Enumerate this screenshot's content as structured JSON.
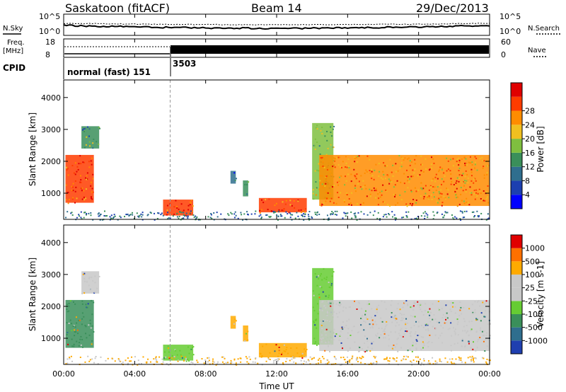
{
  "header": {
    "station": "Saskatoon (fitACF)",
    "beam": "Beam 14",
    "date": "29/Dec/2013"
  },
  "top_panels": {
    "nsky_label": "N.Sky",
    "nsearch_label": "N.Search",
    "freq_label": "Freq.",
    "freq_unit": "[MHz]",
    "nave_label": "Nave",
    "cpid_label": "CPID",
    "noise_ticks_left": [
      "10^5",
      "10^0"
    ],
    "noise_ticks_right": [
      "10^5",
      "10^0"
    ],
    "freq_ticks": [
      "18",
      "8"
    ],
    "nave_ticks": [
      "60",
      "0"
    ],
    "cpid_segments": [
      {
        "label": "normal (fast) 151",
        "start_hour": 0
      },
      {
        "label": "3503",
        "start_hour": 6.0
      }
    ]
  },
  "chart_data": [
    {
      "type": "heatmap",
      "panel": "power",
      "ylabel": "Slant Range [km]",
      "yticks": [
        "1000",
        "2000",
        "3000",
        "4000"
      ],
      "ylim": [
        180,
        4550
      ],
      "xlim": [
        0,
        24
      ],
      "colorbar": {
        "label": "Power [dB]",
        "ticks": [
          "4",
          "8",
          "12",
          "16",
          "20",
          "24",
          "28"
        ],
        "colors": [
          "#0000ff",
          "#1c3fb0",
          "#2f6e8e",
          "#3a8f5a",
          "#7fbf3f",
          "#f0c020",
          "#ff8c00",
          "#ff3c00",
          "#e00000"
        ]
      },
      "regions": [
        {
          "t0": 0.1,
          "t1": 1.7,
          "r0": 700,
          "r1": 2200,
          "level": 7
        },
        {
          "t0": 1.0,
          "t1": 2.0,
          "r0": 2400,
          "r1": 3100,
          "level": 3
        },
        {
          "t0": 5.6,
          "t1": 7.3,
          "r0": 300,
          "r1": 800,
          "level": 7
        },
        {
          "t0": 9.4,
          "t1": 9.7,
          "r0": 1300,
          "r1": 1700,
          "level": 2
        },
        {
          "t0": 10.1,
          "t1": 10.4,
          "r0": 900,
          "r1": 1400,
          "level": 3
        },
        {
          "t0": 11.0,
          "t1": 13.7,
          "r0": 400,
          "r1": 850,
          "level": 7
        },
        {
          "t0": 14.0,
          "t1": 15.2,
          "r0": 800,
          "r1": 3200,
          "level": 4
        },
        {
          "t0": 14.4,
          "t1": 24.0,
          "r0": 600,
          "r1": 2200,
          "level": 6
        }
      ]
    },
    {
      "type": "heatmap",
      "panel": "velocity",
      "ylabel": "Slant Range [km]",
      "xlabel": "Time UT",
      "xticks": [
        "00:00",
        "04:00",
        "08:00",
        "12:00",
        "16:00",
        "20:00",
        "00:00"
      ],
      "yticks": [
        "1000",
        "2000",
        "3000",
        "4000"
      ],
      "ylim": [
        180,
        4550
      ],
      "xlim": [
        0,
        24
      ],
      "colorbar": {
        "label": "Velocity [m s-1]",
        "ticks": [
          "1000",
          "500",
          "100",
          "25",
          "-25",
          "-100",
          "-500",
          "-1000"
        ],
        "colors": [
          "#1f3fb0",
          "#2f6e8e",
          "#3a8f5a",
          "#66cc33",
          "#c8c8c8",
          "#c8c8c8",
          "#ffaa00",
          "#ff7000",
          "#e00000"
        ]
      },
      "regions": [
        {
          "t0": 0.1,
          "t1": 1.7,
          "r0": 700,
          "r1": 2200,
          "color": "#3a8f5a"
        },
        {
          "t0": 1.0,
          "t1": 2.0,
          "r0": 2400,
          "r1": 3100,
          "color": "#c8c8c8"
        },
        {
          "t0": 5.6,
          "t1": 7.3,
          "r0": 300,
          "r1": 800,
          "color": "#66cc33"
        },
        {
          "t0": 9.4,
          "t1": 9.7,
          "r0": 1300,
          "r1": 1700,
          "color": "#ffaa00"
        },
        {
          "t0": 10.1,
          "t1": 10.4,
          "r0": 900,
          "r1": 1400,
          "color": "#ffaa00"
        },
        {
          "t0": 11.0,
          "t1": 13.7,
          "r0": 400,
          "r1": 850,
          "color": "#ffaa00"
        },
        {
          "t0": 14.0,
          "t1": 15.2,
          "r0": 800,
          "r1": 3200,
          "color": "#66cc33"
        },
        {
          "t0": 14.4,
          "t1": 24.0,
          "r0": 600,
          "r1": 2200,
          "color": "#c8c8c8"
        }
      ]
    }
  ]
}
